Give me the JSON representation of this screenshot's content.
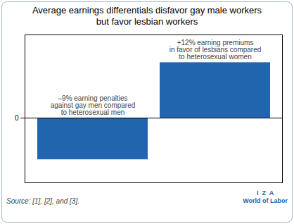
{
  "chart_data": {
    "type": "bar",
    "title": "Average earnings differentials disfavor gay male workers\nbut favor lesbian workers",
    "categories": [
      null,
      null
    ],
    "values": [
      -9,
      12
    ],
    "color": "#2166ac",
    "ylim": [
      -14,
      18
    ],
    "yticks": [
      0
    ],
    "tick_labels": "y",
    "annotations": [
      "–9% earning penalties\nagainst gay men compared\nto heterosexual men",
      "+12% earning premiums\nin favor of lesbians compared\nto heterosexual women"
    ],
    "caption": "Source: [1], [2], and [3].",
    "credit": [
      "I  Z  A",
      "World of Labor"
    ]
  }
}
